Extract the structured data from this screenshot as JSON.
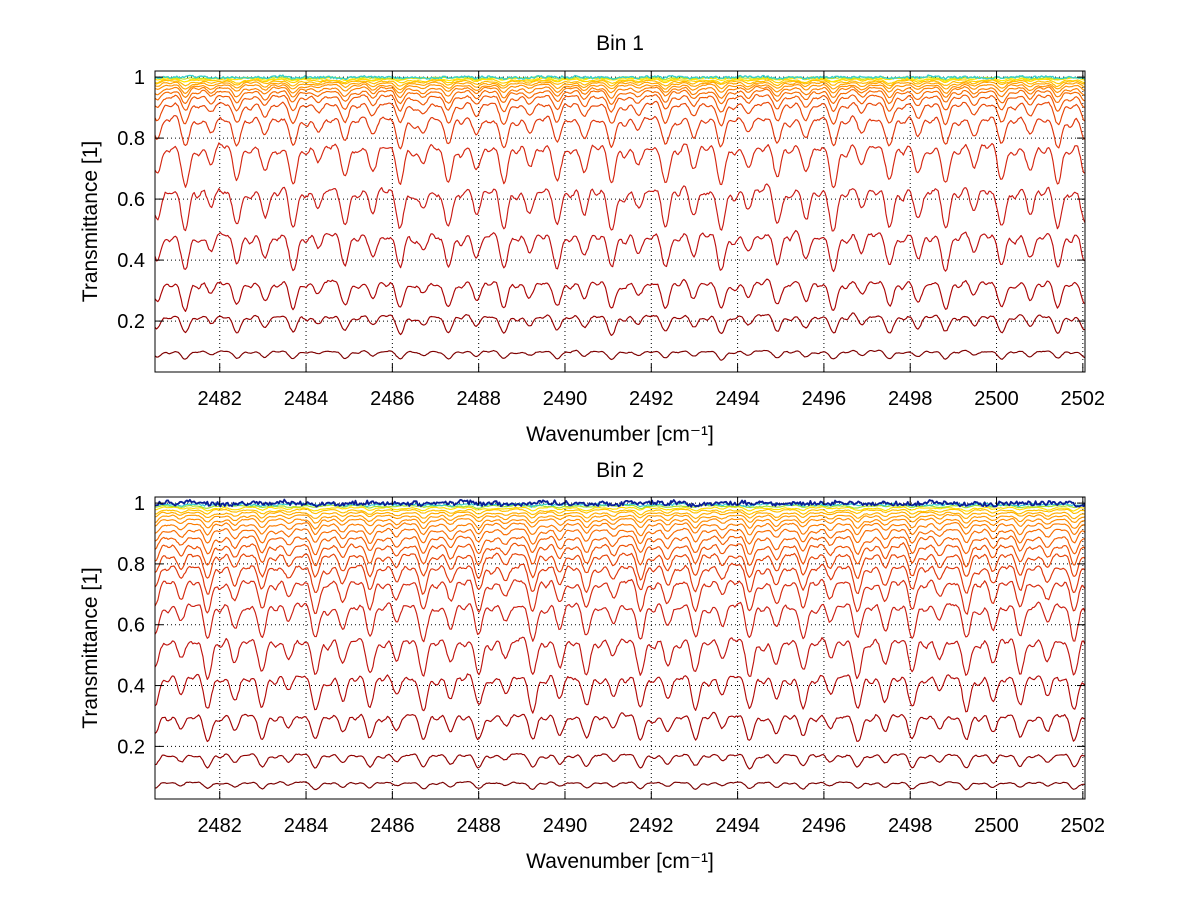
{
  "figure": {
    "kind": "matlab-style-figure",
    "background_color": "#ffffff",
    "gridline_color": "#000000",
    "frame_color": "#000000"
  },
  "chart_data": [
    {
      "type": "line",
      "title": "Bin 1",
      "xlabel": "Wavenumber [cm⁻¹]",
      "ylabel": "Transmittance [1]",
      "xlim": [
        2480.5,
        2502.05
      ],
      "ylim": [
        0.033,
        1.02
      ],
      "xticks": [
        2482,
        2484,
        2486,
        2488,
        2490,
        2492,
        2494,
        2496,
        2498,
        2500,
        2502
      ],
      "yticks": [
        0.2,
        0.4,
        0.6,
        0.8,
        1
      ],
      "ytick_labels": [
        "0.2",
        "0.4",
        "0.6",
        "0.8",
        "1"
      ],
      "grid": "dotted",
      "legend": "none",
      "absorption_lines": {
        "centers": [
          2480.55,
          2481.2,
          2481.8,
          2482.4,
          2483.05,
          2483.7,
          2484.28,
          2484.9,
          2485.55,
          2486.18,
          2486.72,
          2487.3,
          2487.95,
          2488.58,
          2489.18,
          2489.82,
          2490.45,
          2491.08,
          2491.7,
          2492.33,
          2492.98,
          2493.62,
          2494.25,
          2494.92,
          2495.58,
          2496.22,
          2496.88,
          2497.52,
          2498.18,
          2498.82,
          2499.48,
          2500.12,
          2500.78,
          2501.42,
          2502.05
        ],
        "strengths": [
          0.75,
          1,
          0.55,
          0.9,
          0.7,
          1,
          0.5,
          0.85,
          0.65,
          1,
          0.55,
          0.92,
          0.7,
          1,
          0.58,
          0.9,
          0.72,
          1,
          0.55,
          0.95,
          0.68,
          1,
          0.58,
          0.9,
          0.74,
          1,
          0.58,
          0.95,
          0.72,
          1,
          0.6,
          0.9,
          0.7,
          1,
          0.8
        ],
        "sigma_cm": 0.095,
        "satellite_offset_cm": 0.3,
        "satellite_strength": 0.32
      },
      "series": [
        {
          "base": 0.105,
          "amp": 0.03,
          "color": "#7E0000"
        },
        {
          "base": 0.225,
          "amp": 0.065,
          "color": "#970000"
        },
        {
          "base": 0.34,
          "amp": 0.1,
          "color": "#AC0606"
        },
        {
          "base": 0.5,
          "amp": 0.13,
          "color": "#BD1010"
        },
        {
          "base": 0.65,
          "amp": 0.15,
          "color": "#C91B15"
        },
        {
          "base": 0.79,
          "amp": 0.14,
          "color": "#D52711"
        },
        {
          "base": 0.878,
          "amp": 0.105,
          "color": "#DF370C"
        },
        {
          "base": 0.923,
          "amp": 0.078,
          "color": "#E84707"
        },
        {
          "base": 0.946,
          "amp": 0.058,
          "color": "#F05803"
        },
        {
          "base": 0.96,
          "amp": 0.046,
          "color": "#F56A01"
        },
        {
          "base": 0.97,
          "amp": 0.037,
          "color": "#FA7D00"
        },
        {
          "base": 0.978,
          "amp": 0.029,
          "color": "#FE9000"
        },
        {
          "base": 0.9845,
          "amp": 0.023,
          "color": "#FFA300"
        },
        {
          "base": 0.9895,
          "amp": 0.017,
          "color": "#FFB900"
        },
        {
          "base": 0.9935,
          "amp": 0.0125,
          "color": "#FFCE00"
        },
        {
          "base": 0.9965,
          "amp": 0.008,
          "color": "#FFE600"
        },
        {
          "base": 0.999,
          "amp": 0.005,
          "color": "#BCE22A"
        },
        {
          "base": 1.0005,
          "amp": 0.0035,
          "color": "#38CFC8",
          "noise": 0.003,
          "jitter": 0.0035,
          "lw": 1.4
        }
      ]
    },
    {
      "type": "line",
      "title": "Bin 2",
      "xlabel": "Wavenumber [cm⁻¹]",
      "ylabel": "Transmittance [1]",
      "xlim": [
        2480.5,
        2502.05
      ],
      "ylim": [
        0.027,
        1.02
      ],
      "xticks": [
        2482,
        2484,
        2486,
        2488,
        2490,
        2492,
        2494,
        2496,
        2498,
        2500,
        2502
      ],
      "yticks": [
        0.2,
        0.4,
        0.6,
        0.8,
        1
      ],
      "ytick_labels": [
        "0.2",
        "0.4",
        "0.6",
        "0.8",
        "1"
      ],
      "grid": "dotted",
      "legend": "none",
      "absorption_lines": {
        "centers": [
          2480.5,
          2481.1,
          2481.72,
          2482.35,
          2482.98,
          2483.6,
          2484.22,
          2484.85,
          2485.48,
          2486.1,
          2486.72,
          2487.35,
          2488.0,
          2488.62,
          2489.25,
          2489.88,
          2490.5,
          2491.12,
          2491.75,
          2492.38,
          2493.02,
          2493.65,
          2494.28,
          2494.9,
          2495.52,
          2496.15,
          2496.78,
          2497.42,
          2498.05,
          2498.68,
          2499.3,
          2499.92,
          2500.55,
          2501.18,
          2501.8,
          2502.35
        ],
        "strengths": [
          0.85,
          0.6,
          1,
          0.7,
          0.95,
          0.55,
          1,
          0.75,
          0.92,
          0.6,
          1,
          0.72,
          0.95,
          0.55,
          1,
          0.75,
          0.9,
          0.6,
          1,
          0.72,
          0.95,
          0.58,
          1,
          0.75,
          0.92,
          0.6,
          1,
          0.72,
          0.95,
          0.58,
          1,
          0.75,
          0.9,
          0.62,
          1,
          0.7
        ],
        "sigma_cm": 0.095,
        "satellite_offset_cm": 0.3,
        "satellite_strength": 0.32
      },
      "series": [
        {
          "base": 0.085,
          "amp": 0.025,
          "color": "#7A0000"
        },
        {
          "base": 0.18,
          "amp": 0.05,
          "color": "#900000"
        },
        {
          "base": 0.315,
          "amp": 0.095,
          "color": "#A30404"
        },
        {
          "base": 0.446,
          "amp": 0.125,
          "color": "#B30C0A"
        },
        {
          "base": 0.568,
          "amp": 0.135,
          "color": "#C01610"
        },
        {
          "base": 0.683,
          "amp": 0.13,
          "color": "#CB2013"
        },
        {
          "base": 0.758,
          "amp": 0.115,
          "color": "#D52B0F"
        },
        {
          "base": 0.806,
          "amp": 0.1,
          "color": "#DE370B"
        },
        {
          "base": 0.843,
          "amp": 0.088,
          "color": "#E64307"
        },
        {
          "base": 0.872,
          "amp": 0.075,
          "color": "#ED5004"
        },
        {
          "base": 0.897,
          "amp": 0.063,
          "color": "#F35E02"
        },
        {
          "base": 0.92,
          "amp": 0.052,
          "color": "#F86C01"
        },
        {
          "base": 0.938,
          "amp": 0.042,
          "color": "#FB7B00"
        },
        {
          "base": 0.952,
          "amp": 0.034,
          "color": "#FE8A00"
        },
        {
          "base": 0.963,
          "amp": 0.027,
          "color": "#FF9A00"
        },
        {
          "base": 0.972,
          "amp": 0.021,
          "color": "#FFAC00"
        },
        {
          "base": 0.98,
          "amp": 0.016,
          "color": "#FFC000"
        },
        {
          "base": 0.9865,
          "amp": 0.011,
          "color": "#FFDC00"
        },
        {
          "base": 0.992,
          "amp": 0.007,
          "color": "#9FE032"
        },
        {
          "base": 0.9965,
          "amp": 0.005,
          "color": "#2EC8D2",
          "noise": 0.0025,
          "jitter": 0.003
        },
        {
          "base": 1.0005,
          "amp": 0.0035,
          "color": "#0A1E96",
          "noise": 0.0045,
          "jitter": 0.007,
          "lw": 1.8
        }
      ]
    }
  ]
}
